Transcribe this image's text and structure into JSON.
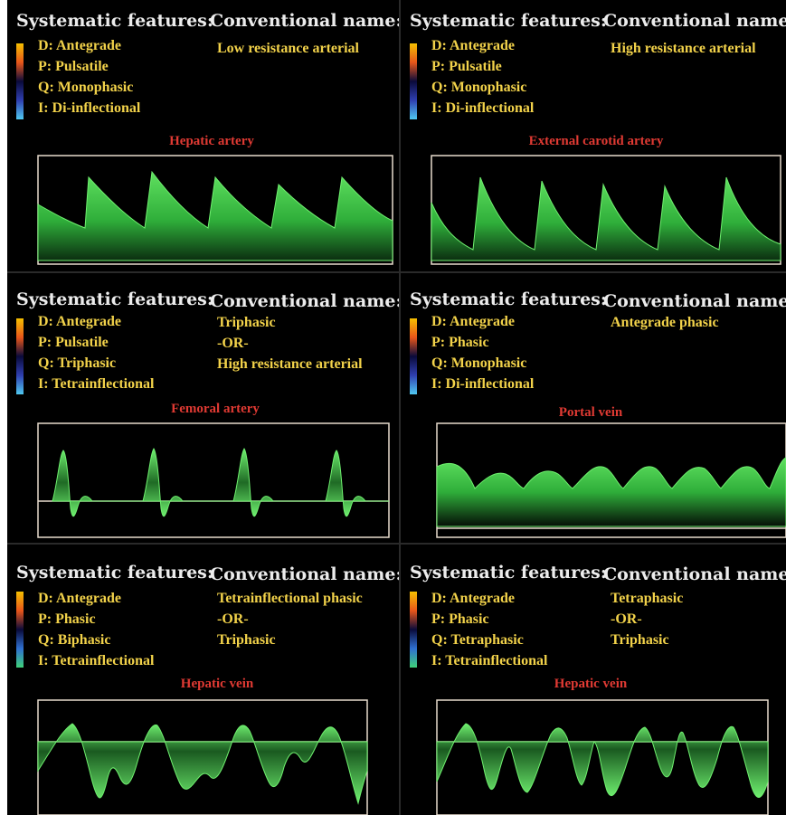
{
  "labels": {
    "systematic_features": "Systematic features:",
    "conventional_name": "Conventional name:"
  },
  "panels": [
    {
      "features": [
        "D: Antegrade",
        "P:  Pulsatile",
        "Q: Monophasic",
        "I:  Di-inflectional"
      ],
      "conventional": [
        "Low resistance arterial"
      ],
      "vessel": "Hepatic artery",
      "colorbar": [
        "#f5c000",
        "#e8561a",
        "#0a0a3a",
        "#2f3fb0",
        "#4fc8f0"
      ]
    },
    {
      "features": [
        "D: Antegrade",
        "P:  Pulsatile",
        "Q: Monophasic",
        "I:  Di-inflectional"
      ],
      "conventional": [
        "High resistance arterial"
      ],
      "vessel": "External carotid artery",
      "colorbar": [
        "#f5c000",
        "#e8561a",
        "#0a0a3a",
        "#2f3fb0",
        "#4fc8f0"
      ]
    },
    {
      "features": [
        "D: Antegrade",
        "P:  Pulsatile",
        "Q: Triphasic",
        "I:  Tetrainflectional"
      ],
      "conventional": [
        "Triphasic",
        "-OR-",
        "High resistance arterial"
      ],
      "vessel": "Femoral artery",
      "colorbar": [
        "#f5c000",
        "#e8561a",
        "#0a0a3a",
        "#2f3fb0",
        "#4fc8f0"
      ]
    },
    {
      "features": [
        "D: Antegrade",
        "P:  Phasic",
        "Q: Monophasic",
        "I:  Di-inflectional"
      ],
      "conventional": [
        "Antegrade phasic"
      ],
      "vessel": "Portal vein",
      "colorbar": [
        "#f5c000",
        "#e8561a",
        "#0a0a3a",
        "#2f3fb0",
        "#4fc8f0"
      ]
    },
    {
      "features": [
        "D: Antegrade",
        "P:  Phasic",
        "Q: Biphasic",
        "I:  Tetrainflectional"
      ],
      "conventional": [
        "Tetrainflectional phasic",
        "-OR-",
        "Triphasic"
      ],
      "vessel": "Hepatic vein",
      "colorbar": [
        "#f5c000",
        "#e8561a",
        "#0a0a3a",
        "#2f6fd0",
        "#3fd07a"
      ]
    },
    {
      "features": [
        "D: Antegrade",
        "P:  Phasic",
        "Q: Tetraphasic",
        "I:  Tetrainflectional"
      ],
      "conventional": [
        "Tetraphasic",
        "-OR-",
        "Triphasic"
      ],
      "vessel": "Hepatic vein",
      "colorbar": [
        "#f5c000",
        "#e8561a",
        "#0a0a3a",
        "#2f6fd0",
        "#3fd07a"
      ]
    }
  ]
}
